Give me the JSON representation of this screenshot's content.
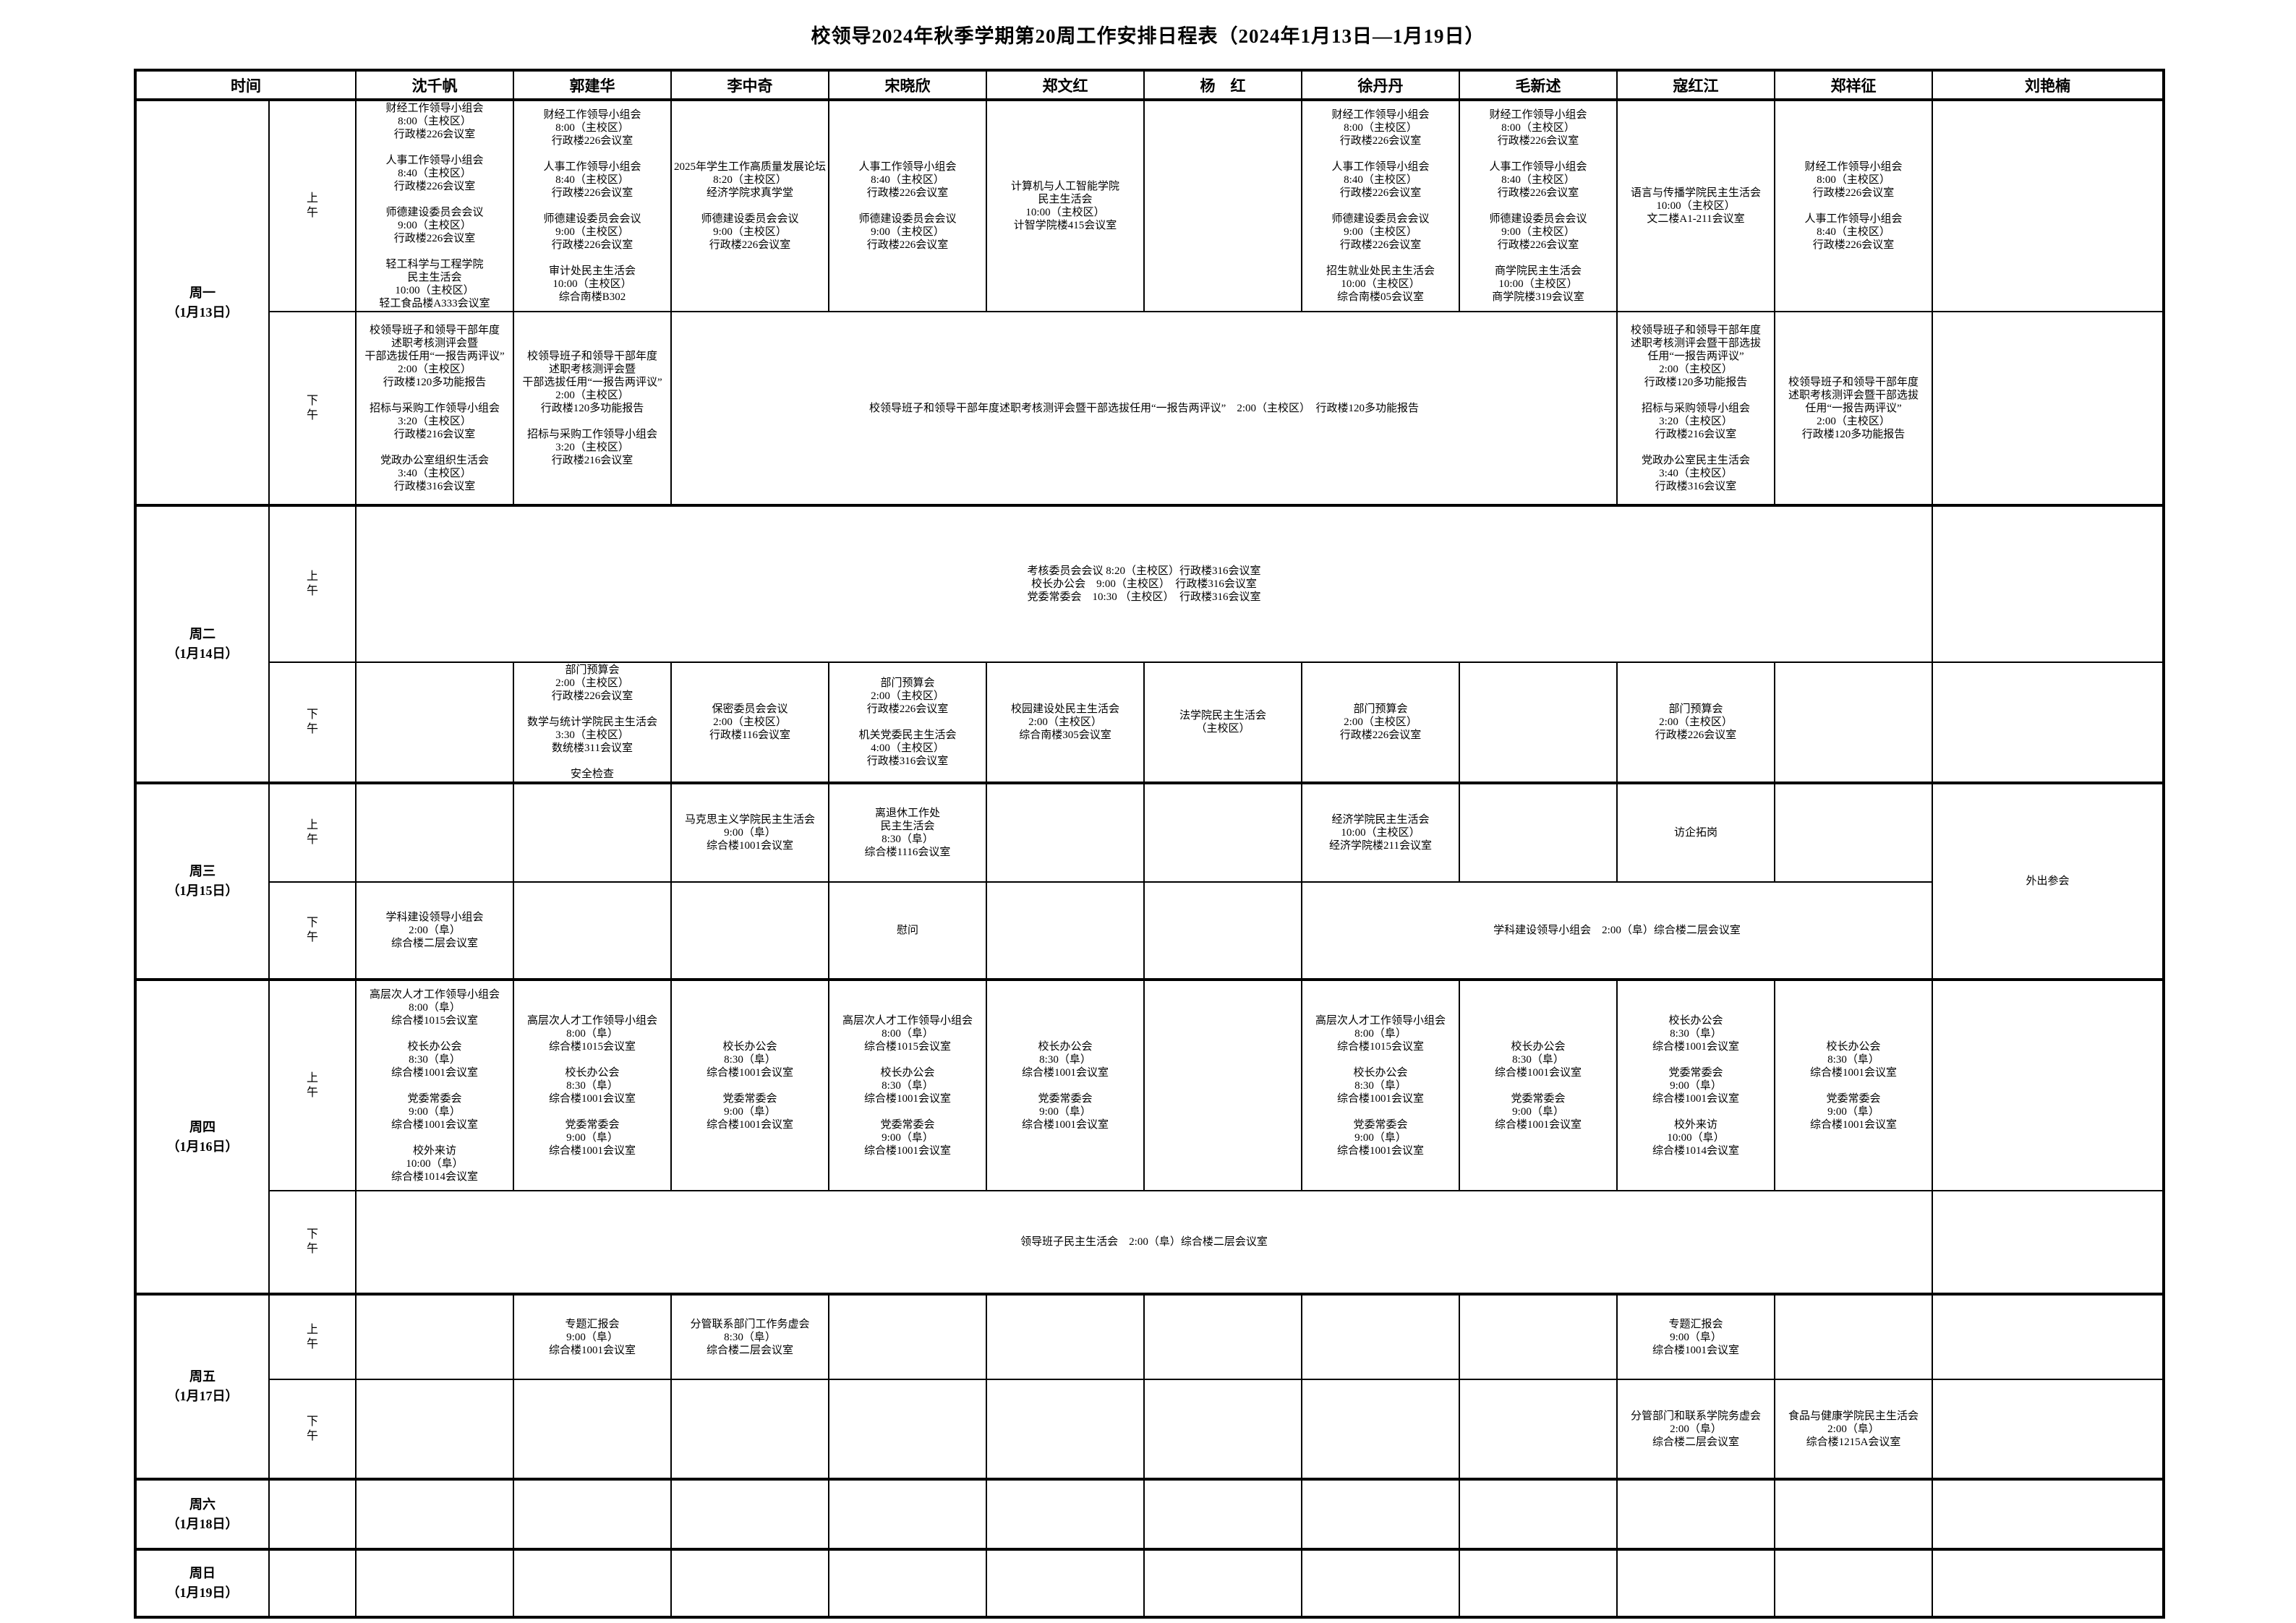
{
  "title": "校领导2024年秋季学期第20周工作安排日程表（2024年1月13日—1月19日）",
  "header": {
    "time_label": "时间",
    "names": [
      "沈千帆",
      "郭建华",
      "李中奇",
      "宋晓欣",
      "郑文红",
      "杨　红",
      "徐丹丹",
      "毛新述",
      "寇红江",
      "郑祥征",
      "刘艳楠"
    ]
  },
  "colors": {
    "grid": "#000000",
    "background": "#ffffff",
    "text": "#000000"
  },
  "days": [
    {
      "label": "周一\n（1月13日）",
      "periods": [
        {
          "label": "上午",
          "cells": [
            {
              "col": 0,
              "text": "财经工作领导小组会\n8:00（主校区）\n行政楼226会议室\n\n人事工作领导小组会\n8:40（主校区）\n行政楼226会议室\n\n师德建设委员会会议\n9:00（主校区）\n行政楼226会议室\n\n轻工科学与工程学院\n民主生活会\n10:00（主校区）\n轻工食品楼A333会议室"
            },
            {
              "col": 1,
              "text": "财经工作领导小组会\n8:00（主校区）\n行政楼226会议室\n\n人事工作领导小组会\n8:40（主校区）\n行政楼226会议室\n\n师德建设委员会会议\n9:00（主校区）\n行政楼226会议室\n\n审计处民主生活会\n10:00（主校区）\n综合南楼B302"
            },
            {
              "col": 2,
              "text": "2025年学生工作高质量发展论坛\n8:20（主校区）\n经济学院求真学堂\n\n师德建设委员会会议\n9:00（主校区）\n行政楼226会议室"
            },
            {
              "col": 3,
              "text": "人事工作领导小组会\n8:40（主校区）\n行政楼226会议室\n\n师德建设委员会会议\n9:00（主校区）\n行政楼226会议室"
            },
            {
              "col": 4,
              "text": "计算机与人工智能学院\n民主生活会\n10:00（主校区）\n计智学院楼415会议室"
            },
            {
              "col": 6,
              "text": "财经工作领导小组会\n8:00（主校区）\n行政楼226会议室\n\n人事工作领导小组会\n8:40（主校区）\n行政楼226会议室\n\n师德建设委员会会议\n9:00（主校区）\n行政楼226会议室\n\n招生就业处民主生活会\n10:00（主校区）\n综合南楼05会议室"
            },
            {
              "col": 7,
              "text": "财经工作领导小组会\n8:00（主校区）\n行政楼226会议室\n\n人事工作领导小组会\n8:40（主校区）\n行政楼226会议室\n\n师德建设委员会会议\n9:00（主校区）\n行政楼226会议室\n\n商学院民主生活会\n10:00（主校区）\n商学院楼319会议室"
            },
            {
              "col": 8,
              "text": "语言与传播学院民主生活会\n10:00（主校区）\n文二楼A1-211会议室"
            },
            {
              "col": 9,
              "text": "财经工作领导小组会\n8:00（主校区）\n行政楼226会议室\n\n人事工作领导小组会\n8:40（主校区）\n行政楼226会议室"
            }
          ]
        },
        {
          "label": "下午",
          "cells": [
            {
              "col": 0,
              "text": "校领导班子和领导干部年度\n述职考核测评会暨\n干部选拔任用“一报告两评议”\n2:00（主校区）\n行政楼120多功能报告\n\n招标与采购工作领导小组会\n3:20（主校区）\n行政楼216会议室\n\n党政办公室组织生活会\n3:40（主校区）\n行政楼316会议室"
            },
            {
              "col": 1,
              "text": "校领导班子和领导干部年度\n述职考核测评会暨\n干部选拔任用“一报告两评议”\n2:00（主校区）\n行政楼120多功能报告\n\n招标与采购工作领导小组会\n3:20（主校区）\n行政楼216会议室"
            },
            {
              "col": 2,
              "colspan": 6,
              "text": "校领导班子和领导干部年度述职考核测评会暨干部选拔任用“一报告两评议”　2:00（主校区）　行政楼120多功能报告"
            },
            {
              "col": 8,
              "text": "校领导班子和领导干部年度\n述职考核测评会暨干部选拔\n任用“一报告两评议”\n2:00（主校区）\n行政楼120多功能报告\n\n招标与采购领导小组会\n3:20（主校区）\n行政楼216会议室\n\n党政办公室民主生活会\n3:40（主校区）\n行政楼316会议室"
            },
            {
              "col": 9,
              "text": "校领导班子和领导干部年度\n述职考核测评会暨干部选拔\n任用“一报告两评议”\n2:00（主校区）\n行政楼120多功能报告"
            }
          ]
        }
      ]
    },
    {
      "label": "周二\n（1月14日）",
      "periods": [
        {
          "label": "上午",
          "cells": [
            {
              "col": 0,
              "colspan": 10,
              "text": "考核委员会会议 8:20（主校区）行政楼316会议室\n校长办公会　9:00（主校区）　行政楼316会议室\n党委常委会　10:30 （主校区）　行政楼316会议室"
            }
          ]
        },
        {
          "label": "下午",
          "cells": [
            {
              "col": 1,
              "text": "部门预算会\n2:00（主校区）\n行政楼226会议室\n\n数学与统计学院民主生活会\n3:30（主校区）\n数统楼311会议室\n\n安全检查"
            },
            {
              "col": 2,
              "text": "保密委员会会议\n2:00（主校区）\n行政楼116会议室"
            },
            {
              "col": 3,
              "text": "部门预算会\n2:00（主校区）\n行政楼226会议室\n\n机关党委民主生活会\n4:00（主校区）\n行政楼316会议室"
            },
            {
              "col": 4,
              "text": "校园建设处民主生活会\n2:00（主校区）\n综合南楼305会议室"
            },
            {
              "col": 5,
              "text": "法学院民主生活会\n（主校区）"
            },
            {
              "col": 6,
              "text": "部门预算会\n2:00（主校区）\n行政楼226会议室"
            },
            {
              "col": 8,
              "text": "部门预算会\n2:00（主校区）\n行政楼226会议室"
            }
          ]
        }
      ]
    },
    {
      "label": "周三\n（1月15日）",
      "periods": [
        {
          "label": "上午",
          "cells": [
            {
              "col": 2,
              "text": "马克思主义学院民主生活会\n9:00（阜）\n综合楼1001会议室"
            },
            {
              "col": 3,
              "text": "离退休工作处\n民主生活会\n8:30（阜）\n综合楼1116会议室"
            },
            {
              "col": 6,
              "text": "经济学院民主生活会\n10:00（主校区）\n经济学院楼211会议室"
            },
            {
              "col": 8,
              "text": "访企拓岗"
            },
            {
              "col": 10,
              "rowspan": 2,
              "text": "外出参会"
            }
          ]
        },
        {
          "label": "下午",
          "cells": [
            {
              "col": 0,
              "text": "学科建设领导小组会\n2:00（阜）\n综合楼二层会议室"
            },
            {
              "col": 3,
              "text": "慰问"
            },
            {
              "col": 6,
              "colspan": 4,
              "text": "学科建设领导小组会　2:00（阜）综合楼二层会议室"
            }
          ]
        }
      ]
    },
    {
      "label": "周四\n（1月16日）",
      "periods": [
        {
          "label": "上午",
          "cells": [
            {
              "col": 0,
              "text": "高层次人才工作领导小组会\n8:00（阜）\n综合楼1015会议室\n\n校长办公会\n8:30（阜）\n综合楼1001会议室\n\n党委常委会\n9:00（阜）\n综合楼1001会议室\n\n校外来访\n10:00（阜）\n综合楼1014会议室"
            },
            {
              "col": 1,
              "text": "高层次人才工作领导小组会\n8:00（阜）\n综合楼1015会议室\n\n校长办公会\n8:30（阜）\n综合楼1001会议室\n\n党委常委会\n9:00（阜）\n综合楼1001会议室"
            },
            {
              "col": 2,
              "text": "校长办公会\n8:30（阜）\n综合楼1001会议室\n\n党委常委会\n9:00（阜）\n综合楼1001会议室"
            },
            {
              "col": 3,
              "text": "高层次人才工作领导小组会\n8:00（阜）\n综合楼1015会议室\n\n校长办公会\n8:30（阜）\n综合楼1001会议室\n\n党委常委会\n9:00（阜）\n综合楼1001会议室"
            },
            {
              "col": 4,
              "text": "校长办公会\n8:30（阜）\n综合楼1001会议室\n\n党委常委会\n9:00（阜）\n综合楼1001会议室"
            },
            {
              "col": 6,
              "text": "高层次人才工作领导小组会\n8:00（阜）\n综合楼1015会议室\n\n校长办公会\n8:30（阜）\n综合楼1001会议室\n\n党委常委会\n9:00（阜）\n综合楼1001会议室"
            },
            {
              "col": 7,
              "text": "校长办公会\n8:30（阜）\n综合楼1001会议室\n\n党委常委会\n9:00（阜）\n综合楼1001会议室"
            },
            {
              "col": 8,
              "text": "校长办公会\n8:30（阜）\n综合楼1001会议室\n\n党委常委会\n9:00（阜）\n综合楼1001会议室\n\n校外来访\n10:00（阜）\n综合楼1014会议室"
            },
            {
              "col": 9,
              "text": "校长办公会\n8:30（阜）\n综合楼1001会议室\n\n党委常委会\n9:00（阜）\n综合楼1001会议室"
            }
          ]
        },
        {
          "label": "下午",
          "cells": [
            {
              "col": 0,
              "colspan": 10,
              "text": "领导班子民主生活会　2:00（阜）综合楼二层会议室"
            }
          ]
        }
      ]
    },
    {
      "label": "周五\n（1月17日）",
      "periods": [
        {
          "label": "上午",
          "cells": [
            {
              "col": 1,
              "text": "专题汇报会\n9:00（阜）\n综合楼1001会议室"
            },
            {
              "col": 2,
              "text": "分管联系部门工作务虚会\n8:30（阜）\n综合楼二层会议室"
            },
            {
              "col": 8,
              "text": "专题汇报会\n9:00（阜）\n综合楼1001会议室"
            }
          ]
        },
        {
          "label": "下午",
          "cells": [
            {
              "col": 8,
              "text": "分管部门和联系学院务虚会\n2:00（阜）\n综合楼二层会议室"
            },
            {
              "col": 9,
              "text": "食品与健康学院民主生活会\n2:00（阜）\n综合楼1215A会议室"
            }
          ]
        }
      ]
    },
    {
      "label": "周六\n（1月18日）",
      "periods": [
        {
          "label": "",
          "cells": []
        }
      ]
    },
    {
      "label": "周日\n（1月19日）",
      "periods": [
        {
          "label": "",
          "cells": []
        }
      ]
    }
  ]
}
